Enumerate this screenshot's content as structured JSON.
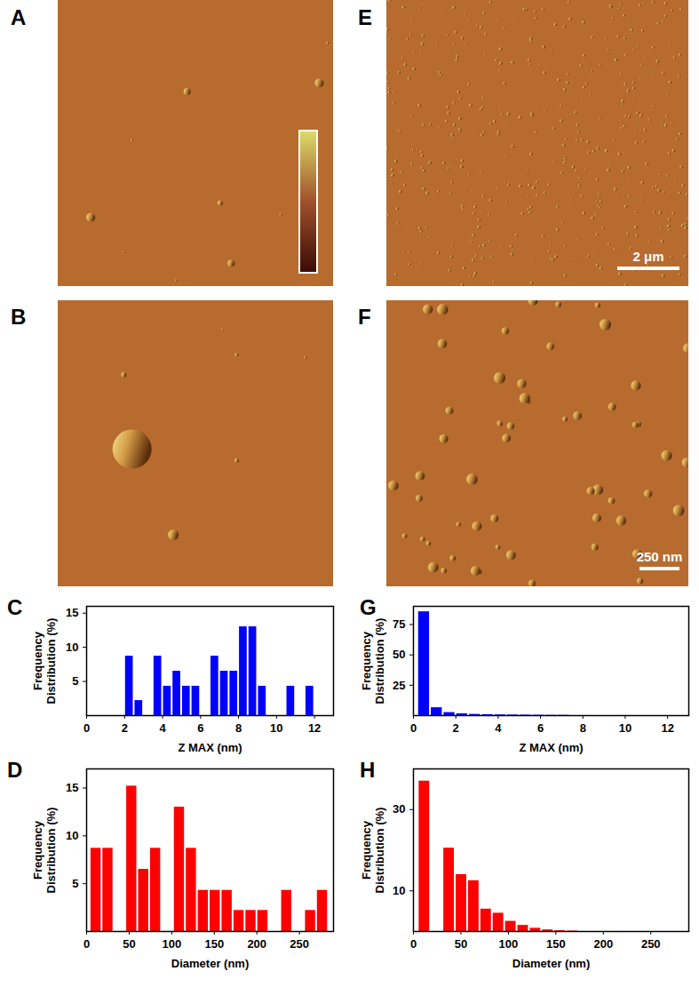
{
  "chart_data": [
    {
      "type": "histogram",
      "title": "C",
      "xlabel": "Z MAX (nm)",
      "ylabel": [
        "Frequency",
        "Distribution (%)"
      ],
      "bins": [
        2,
        2.5,
        3,
        3.5,
        4,
        4.5,
        5,
        5.5,
        6,
        6.5,
        7,
        7.5,
        8,
        8.5,
        9,
        9.5,
        10,
        10.5,
        11,
        11.5,
        12
      ],
      "counts": [
        8.7,
        2.2,
        0,
        8.7,
        4.3,
        6.5,
        4.3,
        4.3,
        0,
        8.7,
        6.5,
        6.5,
        13,
        13,
        4.3,
        0,
        0,
        4.3,
        0,
        4.3
      ],
      "color": "#0000ff",
      "xlim": [
        0,
        13
      ],
      "xticks": [
        0,
        2,
        4,
        6,
        8,
        10,
        12
      ],
      "ylim": [
        0,
        16
      ],
      "yticks": [
        5,
        10,
        15
      ]
    },
    {
      "type": "histogram",
      "title": "D",
      "xlabel": "Diameter (nm)",
      "ylabel": [
        "Frequency",
        "Distribution (%)"
      ],
      "bins": [
        4,
        18,
        32,
        46,
        60,
        74,
        88,
        102,
        116,
        130,
        144,
        158,
        172,
        186,
        200,
        214,
        228,
        242,
        256,
        270,
        284
      ],
      "counts": [
        8.7,
        8.7,
        0,
        15.2,
        6.5,
        8.7,
        0,
        13,
        8.7,
        4.3,
        4.3,
        4.3,
        2.2,
        2.2,
        2.2,
        0,
        4.3,
        0,
        2.2,
        4.3
      ],
      "color": "#ff0000",
      "xlim": [
        0,
        290
      ],
      "xticks": [
        0,
        50,
        100,
        150,
        200,
        250
      ],
      "ylim": [
        0,
        17
      ],
      "yticks": [
        5,
        10,
        15
      ]
    },
    {
      "type": "histogram",
      "title": "G",
      "xlabel": "Z MAX (nm)",
      "ylabel": [
        "Frequency",
        "Distribution (%)"
      ],
      "bins": [
        0.2,
        0.8,
        1.4,
        2,
        2.6,
        3.2,
        3.8,
        4.4,
        5,
        5.6,
        6.2,
        6.8,
        7.4
      ],
      "counts": [
        85.5,
        6.5,
        2.5,
        1.5,
        1,
        0.8,
        0.6,
        0.5,
        0.4,
        0.3,
        0.2,
        0.2
      ],
      "color": "#0000ff",
      "xlim": [
        0,
        13
      ],
      "xticks": [
        0,
        2,
        4,
        6,
        8,
        10,
        12
      ],
      "ylim": [
        0,
        90
      ],
      "yticks": [
        25,
        50,
        75
      ]
    },
    {
      "type": "histogram",
      "title": "H",
      "xlabel": "Diameter (nm)",
      "ylabel": [
        "Frequency",
        "Distribution (%)"
      ],
      "bins": [
        5,
        18,
        31,
        44,
        57,
        70,
        83,
        96,
        109,
        122,
        135,
        148,
        161,
        174
      ],
      "counts": [
        37,
        0,
        20.5,
        14,
        12.5,
        5.5,
        4.5,
        2.5,
        1.5,
        0.8,
        0.4,
        0.2,
        0.1
      ],
      "color": "#ff0000",
      "xlim": [
        0,
        290
      ],
      "xticks": [
        0,
        50,
        100,
        150,
        200,
        250
      ],
      "ylim": [
        0,
        40
      ],
      "yticks": [
        10,
        30
      ]
    }
  ],
  "images": [
    {
      "label": "A"
    },
    {
      "label": "B"
    },
    {
      "label": "E",
      "scale_bar": "2 μm"
    },
    {
      "label": "F",
      "scale_bar": "250 nm"
    }
  ]
}
